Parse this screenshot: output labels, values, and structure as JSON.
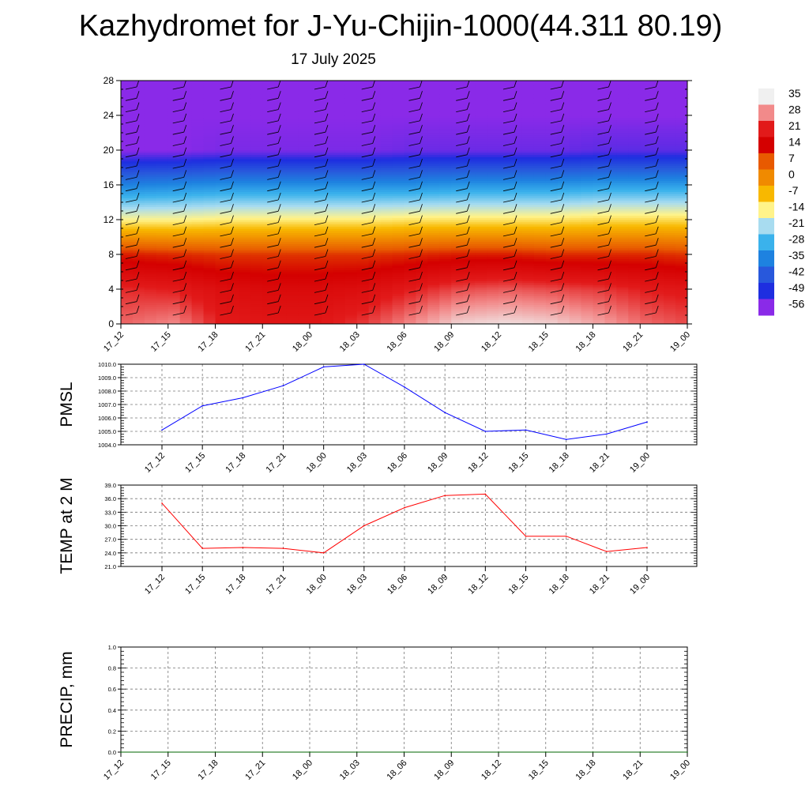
{
  "title": "Kazhydromet for J-Yu-Chijin-1000(44.311 80.19)",
  "subtitle": "17 July 2025",
  "chart_data": [
    {
      "type": "heatmap",
      "x_ticks": [
        "17_12",
        "17_15",
        "17_18",
        "17_21",
        "18_00",
        "18_03",
        "18_06",
        "18_09",
        "18_12",
        "18_15",
        "18_18",
        "18_21",
        "19_00"
      ],
      "y_ticks": [
        "0",
        "4",
        "8",
        "12",
        "16",
        "20",
        "24",
        "28"
      ],
      "ylim": [
        0,
        28
      ],
      "colorbar_labels": [
        "35",
        "28",
        "21",
        "14",
        "7",
        "0",
        "-7",
        "-14",
        "-21",
        "-28",
        "-35",
        "-42",
        "-49",
        "-56"
      ],
      "colors": [
        "#f0f0f0",
        "#f28a8a",
        "#e21a1a",
        "#d40000",
        "#e85a00",
        "#f08a00",
        "#f8b800",
        "#fff38a",
        "#a8dcf0",
        "#3ab2ec",
        "#1e82e0",
        "#2858dc",
        "#1e2ee0",
        "#8a2ae8"
      ],
      "profile_points": [
        {
          "t": 0,
          "level0": 26,
          "level4": 22,
          "level8": 12,
          "level12": -14,
          "level16": -35,
          "level20": -56,
          "level24": -56,
          "level28": -56
        },
        {
          "t": 1,
          "level0": 28,
          "level4": 21,
          "level8": 11,
          "level12": -14,
          "level16": -34,
          "level20": -56,
          "level24": -56,
          "level28": -56
        },
        {
          "t": 2,
          "level0": 21,
          "level4": 18,
          "level8": 10,
          "level12": -13,
          "level16": -33,
          "level20": -55,
          "level24": -56,
          "level28": -56
        },
        {
          "t": 3,
          "level0": 20,
          "level4": 17,
          "level8": 10,
          "level12": -13,
          "level16": -33,
          "level20": -55,
          "level24": -56,
          "level28": -56
        },
        {
          "t": 4,
          "level0": 20,
          "level4": 17,
          "level8": 10,
          "level12": -13,
          "level16": -33,
          "level20": -55,
          "level24": -56,
          "level28": -56
        },
        {
          "t": 5,
          "level0": 23,
          "level4": 18,
          "level8": 10,
          "level12": -13,
          "level16": -33,
          "level20": -55,
          "level24": -56,
          "level28": -56
        },
        {
          "t": 6,
          "level0": 28,
          "level4": 21,
          "level8": 11,
          "level12": -12,
          "level16": -33,
          "level20": -54,
          "level24": -56,
          "level28": -56
        },
        {
          "t": 7,
          "level0": 33,
          "level4": 24,
          "level8": 12,
          "level12": -12,
          "level16": -32,
          "level20": -54,
          "level24": -56,
          "level28": -56
        },
        {
          "t": 8,
          "level0": 34,
          "level4": 25,
          "level8": 12,
          "level12": -12,
          "level16": -32,
          "level20": -54,
          "level24": -56,
          "level28": -56
        },
        {
          "t": 9,
          "level0": 33,
          "level4": 24,
          "level8": 11,
          "level12": -12,
          "level16": -32,
          "level20": -54,
          "level24": -56,
          "level28": -56
        },
        {
          "t": 10,
          "level0": 30,
          "level4": 23,
          "level8": 11,
          "level12": -11,
          "level16": -31,
          "level20": -53,
          "level24": -56,
          "level28": -56
        },
        {
          "t": 11,
          "level0": 26,
          "level4": 21,
          "level8": 11,
          "level12": -11,
          "level16": -31,
          "level20": -53,
          "level24": -56,
          "level28": -56
        },
        {
          "t": 12,
          "level0": 24,
          "level4": 20,
          "level8": 10,
          "level12": -11,
          "level16": -31,
          "level20": -53,
          "level24": -56,
          "level28": -56
        }
      ]
    },
    {
      "type": "line",
      "ylabel": "PMSL",
      "ylim": [
        1004.0,
        1010.0
      ],
      "y_ticks": [
        "1004.0",
        "1005.0",
        "1006.0",
        "1007.0",
        "1008.0",
        "1009.0",
        "1010.0"
      ],
      "categories": [
        "17_12",
        "17_15",
        "17_18",
        "17_21",
        "18_00",
        "18_03",
        "18_06",
        "18_09",
        "18_12",
        "18_15",
        "18_18",
        "18_21",
        "19_00"
      ],
      "values": [
        1005.1,
        1006.9,
        1007.5,
        1008.4,
        1009.8,
        1010.0,
        1008.3,
        1006.4,
        1005.0,
        1005.1,
        1004.4,
        1004.8,
        1005.7
      ],
      "color": "#0000ff"
    },
    {
      "type": "line",
      "ylabel": "TEMP at 2 M",
      "ylim": [
        21.0,
        39.0
      ],
      "y_ticks": [
        "21.0",
        "24.0",
        "27.0",
        "30.0",
        "33.0",
        "36.0",
        "39.0"
      ],
      "categories": [
        "17_12",
        "17_15",
        "17_18",
        "17_21",
        "18_00",
        "18_03",
        "18_06",
        "18_09",
        "18_12",
        "18_15",
        "18_18",
        "18_21",
        "19_00"
      ],
      "values": [
        35.0,
        25.0,
        25.2,
        25.0,
        24.0,
        30.0,
        34.0,
        36.7,
        37.0,
        27.7,
        27.7,
        24.3,
        25.2
      ],
      "color": "#ff0000"
    },
    {
      "type": "line",
      "ylabel": "PRECIP, mm",
      "ylim": [
        0.0,
        1.0
      ],
      "y_ticks": [
        "0.0",
        "0.2",
        "0.4",
        "0.6",
        "0.8",
        "1.0"
      ],
      "categories": [
        "17_12",
        "17_15",
        "17_18",
        "17_21",
        "18_00",
        "18_03",
        "18_06",
        "18_09",
        "18_12",
        "18_15",
        "18_18",
        "18_21",
        "19_00"
      ],
      "values": [
        0,
        0,
        0,
        0,
        0,
        0,
        0,
        0,
        0,
        0,
        0,
        0,
        0
      ],
      "color": "#006400"
    }
  ]
}
